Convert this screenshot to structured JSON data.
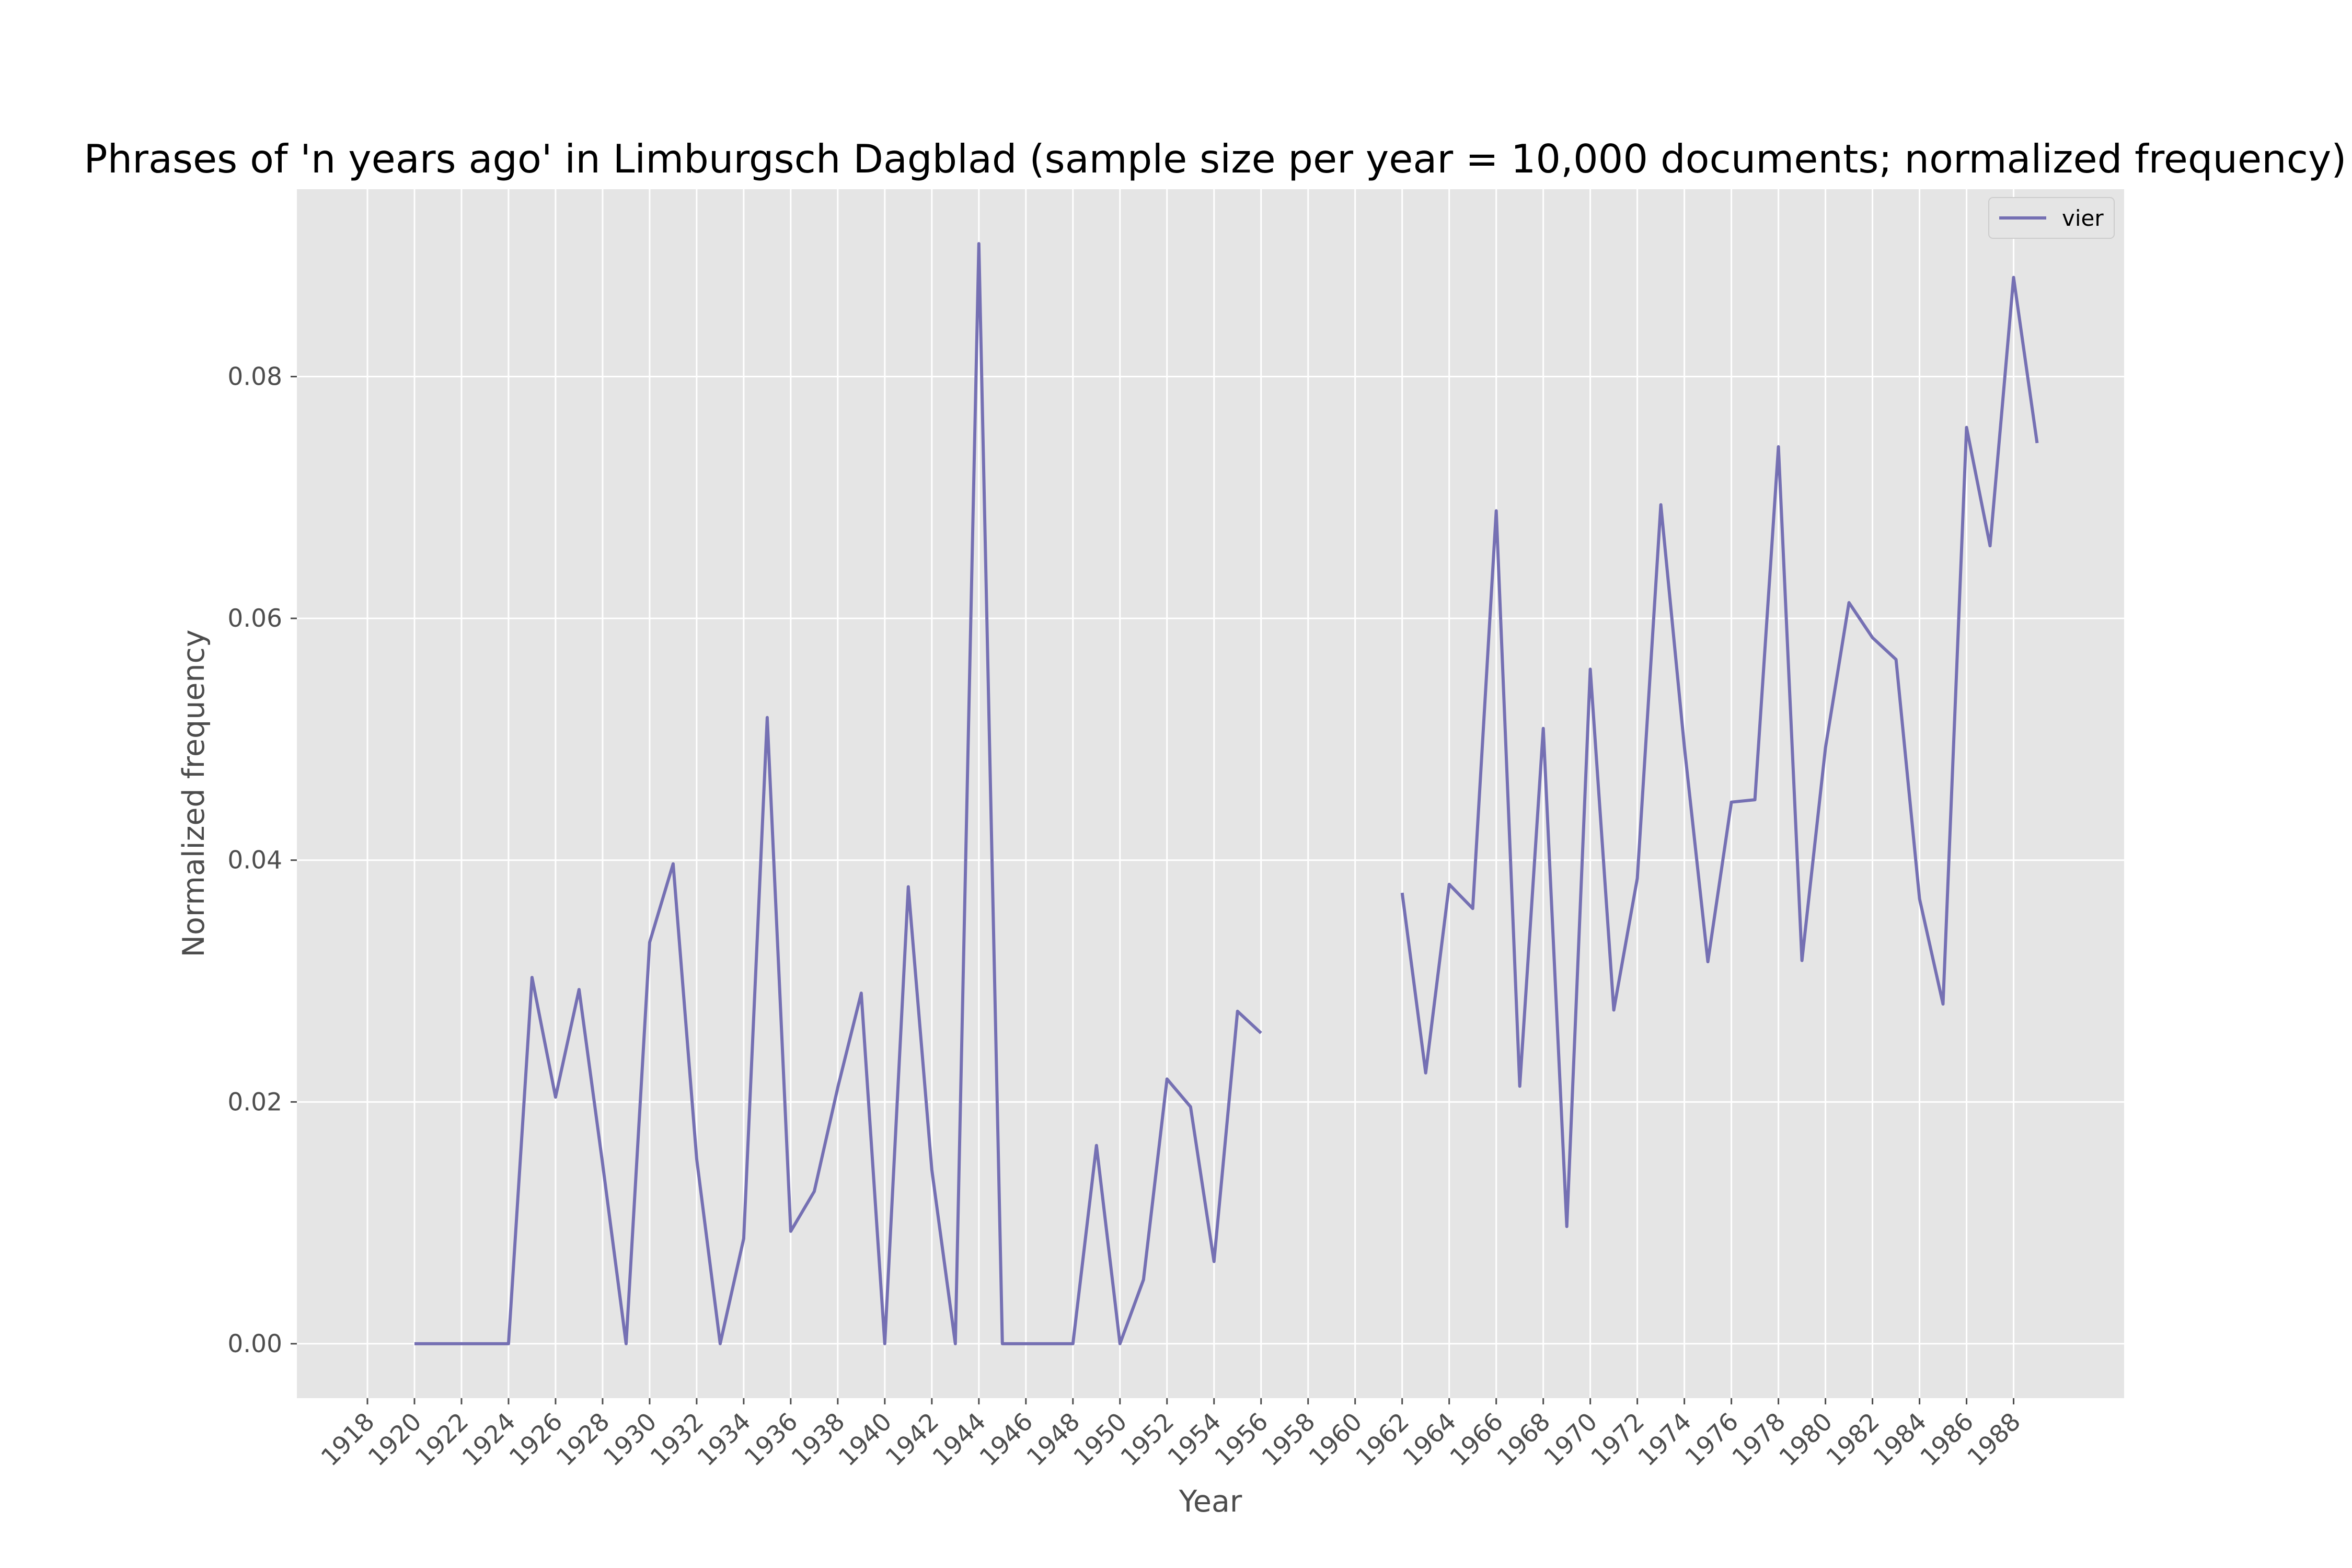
{
  "chart_data": {
    "type": "line",
    "title": "Phrases of 'n years ago' in Limburgsch Dagblad (sample size per year = 10,000 documents; normalized frequency)",
    "xlabel": "Year",
    "ylabel": "Normalized frequency",
    "xlim": [
      1915.0,
      1992.7
    ],
    "ylim": [
      -0.0045,
      0.0955
    ],
    "x_ticks": [
      1918,
      1920,
      1922,
      1924,
      1926,
      1928,
      1930,
      1932,
      1934,
      1936,
      1938,
      1940,
      1942,
      1944,
      1946,
      1948,
      1950,
      1952,
      1954,
      1956,
      1958,
      1960,
      1962,
      1964,
      1966,
      1968,
      1970,
      1972,
      1974,
      1976,
      1978,
      1980,
      1982,
      1984,
      1986,
      1988
    ],
    "y_ticks": [
      0.0,
      0.02,
      0.04,
      0.06,
      0.08
    ],
    "y_tick_labels": [
      "0.00",
      "0.02",
      "0.04",
      "0.06",
      "0.08"
    ],
    "grid": true,
    "legend_position": "top-right",
    "colors": {
      "background": "#e5e5e5",
      "grid": "#ffffff",
      "line": "#7570b3"
    },
    "series": [
      {
        "name": "vier",
        "x": [
          1920,
          1921,
          1922,
          1923,
          1924,
          1925,
          1926,
          1927,
          1928,
          1929,
          1930,
          1931,
          1932,
          1933,
          1934,
          1935,
          1936,
          1937,
          1938,
          1939,
          1940,
          1941,
          1942,
          1943,
          1944,
          1945,
          1946,
          1947,
          1948,
          1949,
          1950,
          1951,
          1952,
          1953,
          1954,
          1955,
          1956,
          1957,
          1958,
          1959,
          1960,
          1961,
          1962,
          1963,
          1964,
          1965,
          1966,
          1967,
          1968,
          1969,
          1970,
          1971,
          1972,
          1973,
          1974,
          1975,
          1976,
          1977,
          1978,
          1979,
          1980,
          1981,
          1982,
          1983,
          1984,
          1985,
          1986,
          1987,
          1988,
          1989
        ],
        "values": [
          0.0,
          0.0,
          0.0,
          0.0,
          0.0,
          0.0303,
          0.0204,
          0.0293,
          0.0149,
          0.0,
          0.0332,
          0.0397,
          0.0153,
          0.0,
          0.0087,
          0.0518,
          0.0093,
          0.0126,
          0.0212,
          0.029,
          0.0,
          0.0378,
          0.0144,
          0.0,
          0.091,
          0.0,
          0.0,
          0.0,
          0.0,
          0.0164,
          0.0,
          0.0053,
          0.0219,
          0.0196,
          0.0068,
          0.0275,
          0.0257,
          null,
          null,
          null,
          null,
          null,
          0.0373,
          0.0224,
          0.038,
          0.036,
          0.0689,
          0.0213,
          0.0509,
          0.0097,
          0.0558,
          0.0276,
          0.0385,
          0.0694,
          0.0494,
          0.0316,
          0.0448,
          0.045,
          0.0742,
          0.0317,
          0.0493,
          0.0613,
          0.0584,
          0.0566,
          0.0368,
          0.0281,
          0.0758,
          0.066,
          0.0882,
          0.0745
        ]
      }
    ]
  }
}
